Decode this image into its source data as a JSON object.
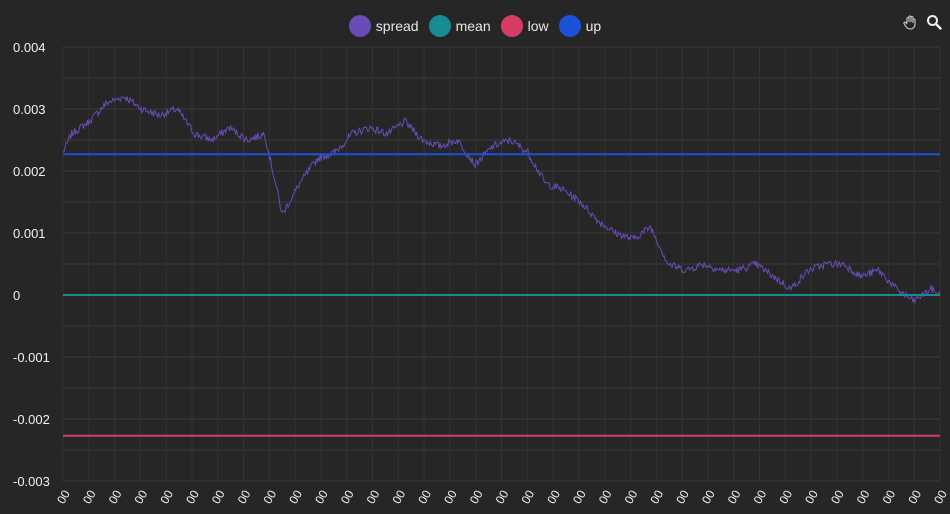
{
  "chart_data": {
    "type": "line",
    "ylim": [
      -0.003,
      0.004
    ],
    "yticks": [
      "0.004",
      "0.003",
      "0.002",
      "0.001",
      "0",
      "-0.001",
      "-0.002",
      "-0.003"
    ],
    "ytick_values": [
      0.004,
      0.003,
      0.002,
      0.001,
      0,
      -0.001,
      -0.002,
      -0.003
    ],
    "xtick_labels": [
      "00",
      "00",
      "00",
      "00",
      "00",
      "00",
      "00",
      "00",
      "00",
      "00",
      "00",
      "00",
      "00",
      "00",
      "00",
      "00",
      "00",
      "00",
      "00",
      "00",
      "00",
      "00",
      "00",
      "00",
      "00",
      "00",
      "00",
      "00",
      "00",
      "00",
      "00",
      "00",
      "00",
      "00",
      "00"
    ],
    "legend_position": "top-center",
    "grid": true,
    "series": [
      {
        "name": "spread",
        "color": "#6a4bb8",
        "anchors": [
          [
            0,
            0.0023
          ],
          [
            0.01,
            0.0026
          ],
          [
            0.03,
            0.0028
          ],
          [
            0.05,
            0.0031
          ],
          [
            0.07,
            0.0032
          ],
          [
            0.09,
            0.003
          ],
          [
            0.11,
            0.0029
          ],
          [
            0.13,
            0.003
          ],
          [
            0.15,
            0.0026
          ],
          [
            0.17,
            0.0025
          ],
          [
            0.19,
            0.0027
          ],
          [
            0.21,
            0.0025
          ],
          [
            0.23,
            0.0026
          ],
          [
            0.25,
            0.0013
          ],
          [
            0.27,
            0.0018
          ],
          [
            0.29,
            0.0022
          ],
          [
            0.31,
            0.0023
          ],
          [
            0.33,
            0.0026
          ],
          [
            0.35,
            0.0027
          ],
          [
            0.37,
            0.0026
          ],
          [
            0.39,
            0.0028
          ],
          [
            0.41,
            0.0025
          ],
          [
            0.43,
            0.0024
          ],
          [
            0.45,
            0.0025
          ],
          [
            0.47,
            0.0021
          ],
          [
            0.49,
            0.0024
          ],
          [
            0.51,
            0.0025
          ],
          [
            0.53,
            0.0023
          ],
          [
            0.55,
            0.0018
          ],
          [
            0.57,
            0.0017
          ],
          [
            0.59,
            0.0015
          ],
          [
            0.61,
            0.0012
          ],
          [
            0.63,
            0.001
          ],
          [
            0.65,
            0.0009
          ],
          [
            0.67,
            0.0011
          ],
          [
            0.69,
            0.0005
          ],
          [
            0.71,
            0.0004
          ],
          [
            0.73,
            0.0005
          ],
          [
            0.75,
            0.0004
          ],
          [
            0.77,
            0.0004
          ],
          [
            0.79,
            0.0005
          ],
          [
            0.81,
            0.0003
          ],
          [
            0.83,
            0.0001
          ],
          [
            0.85,
            0.0004
          ],
          [
            0.87,
            0.0005
          ],
          [
            0.89,
            0.0005
          ],
          [
            0.91,
            0.0003
          ],
          [
            0.93,
            0.0004
          ],
          [
            0.95,
            0.0001
          ],
          [
            0.97,
            -0.0001
          ],
          [
            0.99,
            0.0001
          ],
          [
            1.0,
            0.0
          ]
        ]
      },
      {
        "name": "mean",
        "color": "#178c95",
        "value": 0.0
      },
      {
        "name": "low",
        "color": "#d63d62",
        "value": -0.00227
      },
      {
        "name": "up",
        "color": "#1a52d8",
        "value": 0.00227
      }
    ]
  },
  "toolbar": {
    "pan_icon": "hand-icon",
    "zoom_icon": "search-icon"
  }
}
